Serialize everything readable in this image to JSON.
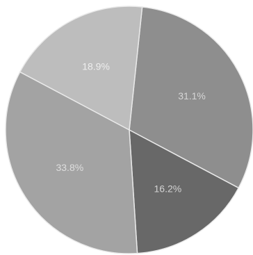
{
  "chart_data": {
    "type": "pie",
    "title": "",
    "start_angle_deg": -84,
    "slices": [
      {
        "label": "31.1%",
        "value": 31.1,
        "color": "#8e8e8e",
        "label_color": "#d6d6d6"
      },
      {
        "label": "16.2%",
        "value": 16.2,
        "color": "#686868",
        "label_color": "#d2d2d2"
      },
      {
        "label": "33.8%",
        "value": 33.8,
        "color": "#a3a3a3",
        "label_color": "#dedede"
      },
      {
        "label": "18.9%",
        "value": 18.9,
        "color": "#bdbdbd",
        "label_color": "#eeeeee"
      }
    ],
    "legend": "none",
    "slice_edge_color": "#e9e9e9"
  }
}
